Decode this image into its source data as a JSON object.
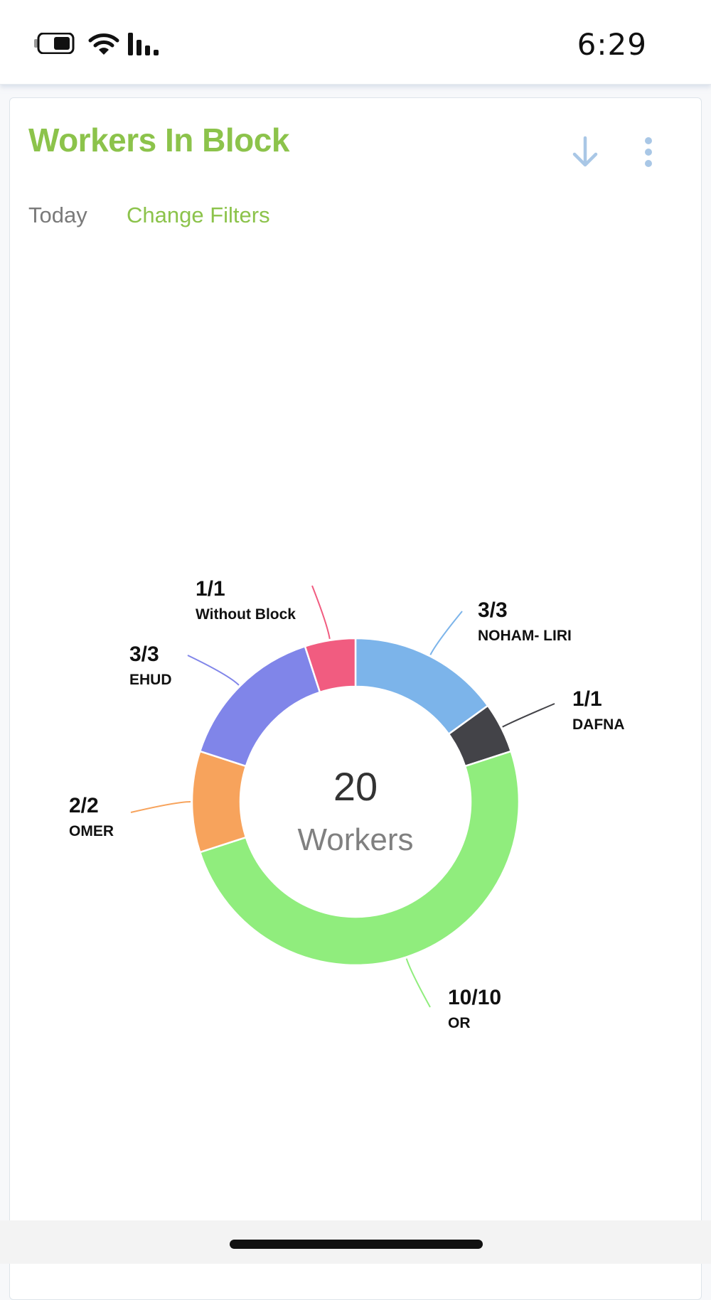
{
  "status_bar": {
    "time": "6:29"
  },
  "card": {
    "title": "Workers In Block",
    "filter_period": "Today",
    "change_filters_label": "Change Filters"
  },
  "chart_data": {
    "type": "pie",
    "center_value": "20",
    "center_label": "Workers",
    "slices": [
      {
        "name": "NOHAM- LIRI",
        "label": "3/3",
        "value": 3,
        "color": "#7cb4ea"
      },
      {
        "name": "DAFNA",
        "label": "1/1",
        "value": 1,
        "color": "#434348"
      },
      {
        "name": "OR",
        "label": "10/10",
        "value": 10,
        "color": "#90ed7d"
      },
      {
        "name": "OMER",
        "label": "2/2",
        "value": 2,
        "color": "#f7a35c"
      },
      {
        "name": "EHUD",
        "label": "3/3",
        "value": 3,
        "color": "#8085e9"
      },
      {
        "name": "Without Block",
        "label": "1/1",
        "value": 1,
        "color": "#f15c80"
      }
    ]
  },
  "colors": {
    "accent": "#8cc34b",
    "icon": "#a9c7e6"
  }
}
